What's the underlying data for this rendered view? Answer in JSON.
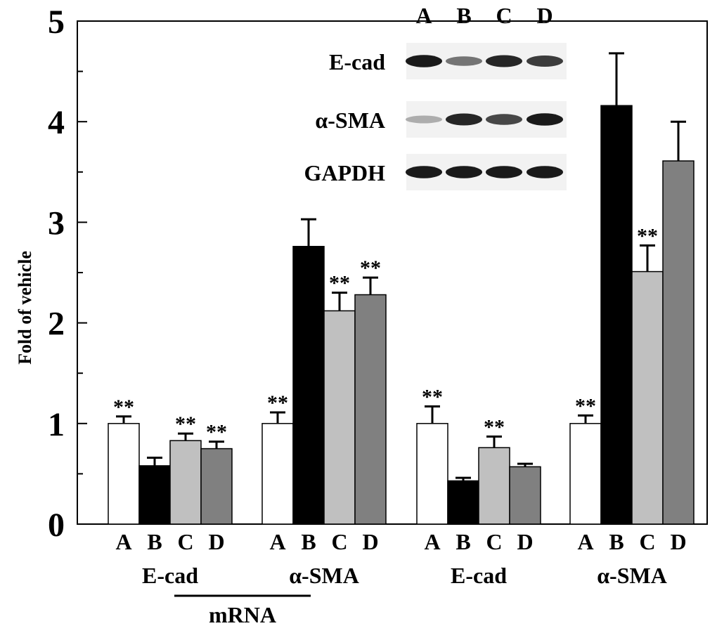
{
  "chart_data": {
    "type": "bar",
    "ylabel": "Fold of vehicle",
    "ylim": [
      0,
      5
    ],
    "yticks": [
      0,
      1,
      2,
      3,
      4,
      5
    ],
    "groups": [
      {
        "label": "E-cad",
        "categories": [
          "A",
          "B",
          "C",
          "D"
        ],
        "values": [
          1.0,
          0.58,
          0.83,
          0.75
        ],
        "errors": [
          0.07,
          0.08,
          0.07,
          0.07
        ],
        "marks": [
          "**",
          "",
          "**",
          "**"
        ]
      },
      {
        "label": "α-SMA",
        "categories": [
          "A",
          "B",
          "C",
          "D"
        ],
        "values": [
          1.0,
          2.76,
          2.12,
          2.28
        ],
        "errors": [
          0.11,
          0.27,
          0.18,
          0.17
        ],
        "marks": [
          "**",
          "",
          "**",
          "**"
        ]
      },
      {
        "label": "E-cad",
        "categories": [
          "A",
          "B",
          "C",
          "D"
        ],
        "values": [
          1.0,
          0.43,
          0.76,
          0.57
        ],
        "errors": [
          0.17,
          0.03,
          0.11,
          0.03
        ],
        "marks": [
          "**",
          "",
          "**",
          ""
        ]
      },
      {
        "label": "α-SMA",
        "categories": [
          "A",
          "B",
          "C",
          "D"
        ],
        "values": [
          1.0,
          4.16,
          2.51,
          3.61
        ],
        "errors": [
          0.08,
          0.52,
          0.26,
          0.39
        ],
        "marks": [
          "**",
          "",
          "**",
          ""
        ]
      }
    ],
    "bar_colors": {
      "A": "#ffffff",
      "B": "#000000",
      "C": "#c0c0c0",
      "D": "#808080"
    },
    "bracket_label": "mRNA",
    "blot": {
      "lanes": [
        "A",
        "B",
        "C",
        "D"
      ],
      "bands": [
        {
          "label": "E-cad",
          "intensity": [
            0.95,
            0.55,
            0.9,
            0.8
          ]
        },
        {
          "label": "α-SMA",
          "intensity": [
            0.3,
            0.9,
            0.75,
            0.95
          ]
        },
        {
          "label": "GAPDH",
          "intensity": [
            0.95,
            0.95,
            0.95,
            0.95
          ]
        }
      ]
    }
  }
}
